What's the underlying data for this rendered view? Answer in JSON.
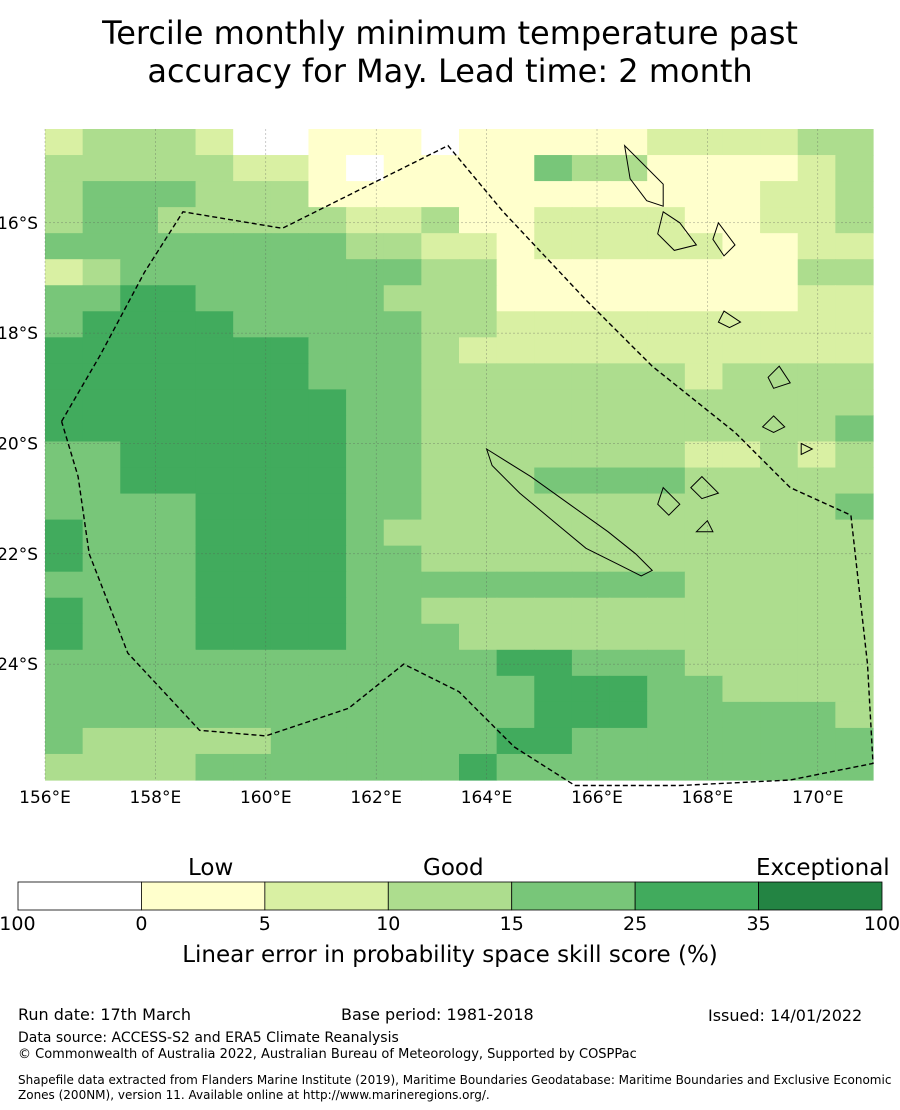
{
  "title": {
    "line1": "Tercile monthly minimum temperature past",
    "line2": "accuracy for May. Lead time: 2 month"
  },
  "map": {
    "lon_labels": [
      "156°E",
      "158°E",
      "160°E",
      "162°E",
      "164°E",
      "166°E",
      "168°E",
      "170°E"
    ],
    "lon_values": [
      156,
      158,
      160,
      162,
      164,
      166,
      168,
      170
    ],
    "lat_labels": [
      "16°S",
      "18°S",
      "20°S",
      "22°S",
      "24°S"
    ],
    "lat_values": [
      -16,
      -18,
      -20,
      -22,
      -24
    ],
    "extent": {
      "lon_min": 156,
      "lon_max": 171,
      "lat_max": -14.3,
      "lat_min": -26.1
    },
    "cell_size_deg": {
      "lon": 0.833,
      "lat": 0.556
    },
    "skill_grid_classes": [
      "2333200111011111222233",
      "3333322101111433111123",
      "3444333111111111111223",
      "3443333322311222211223",
      "4444444433221222221122",
      "2344444444331111111133",
      "4455444443331111111122",
      "4555544444332222222222",
      "5555555444322222222222",
      "5555555444333333323333",
      "5555555544333333333333",
      "5555555544333333333334",
      "4455555544333333322323",
      "4455555544333444433333",
      "4444555544333333333334",
      "5444555543333333333333",
      "5444555544333333333333",
      "4444555544444444433333",
      "5444555544333333333333",
      "5444555544433333333333",
      "4444444444445544433333",
      "4444444444444555443333",
      "4444444444444555444443",
      "4333334444445544444444",
      "3333444444454444444444"
    ],
    "zone_boundary_lonlat": [
      [
        156.3,
        -19.6
      ],
      [
        157.0,
        -18.4
      ],
      [
        157.8,
        -16.9
      ],
      [
        158.5,
        -15.8
      ],
      [
        160.3,
        -16.1
      ],
      [
        163.3,
        -14.6
      ],
      [
        164.3,
        -15.8
      ],
      [
        165.8,
        -17.4
      ],
      [
        167.0,
        -18.6
      ],
      [
        168.5,
        -19.8
      ],
      [
        169.5,
        -20.8
      ],
      [
        170.6,
        -21.3
      ],
      [
        170.9,
        -24.0
      ],
      [
        171.0,
        -25.8
      ],
      [
        169.5,
        -26.1
      ],
      [
        167.5,
        -26.2
      ],
      [
        165.6,
        -26.2
      ],
      [
        164.5,
        -25.5
      ],
      [
        163.5,
        -24.5
      ],
      [
        162.5,
        -24.0
      ],
      [
        161.5,
        -24.8
      ],
      [
        160.0,
        -25.3
      ],
      [
        158.8,
        -25.2
      ],
      [
        157.5,
        -23.8
      ],
      [
        156.8,
        -22.0
      ],
      [
        156.6,
        -20.6
      ],
      [
        156.3,
        -19.6
      ]
    ],
    "coastlines_lonlat": [
      [
        [
          164.0,
          -20.1
        ],
        [
          164.8,
          -20.6
        ],
        [
          165.5,
          -21.1
        ],
        [
          166.2,
          -21.6
        ],
        [
          166.7,
          -22.0
        ],
        [
          167.0,
          -22.3
        ],
        [
          166.8,
          -22.4
        ],
        [
          166.4,
          -22.2
        ],
        [
          165.8,
          -21.9
        ],
        [
          165.2,
          -21.4
        ],
        [
          164.6,
          -20.9
        ],
        [
          164.1,
          -20.4
        ],
        [
          164.0,
          -20.1
        ]
      ],
      [
        [
          166.5,
          -14.6
        ],
        [
          166.8,
          -14.9
        ],
        [
          167.2,
          -15.3
        ],
        [
          167.2,
          -15.7
        ],
        [
          166.9,
          -15.6
        ],
        [
          166.6,
          -15.2
        ],
        [
          166.5,
          -14.6
        ]
      ],
      [
        [
          167.2,
          -15.8
        ],
        [
          167.5,
          -16.0
        ],
        [
          167.8,
          -16.4
        ],
        [
          167.4,
          -16.5
        ],
        [
          167.1,
          -16.2
        ],
        [
          167.2,
          -15.8
        ]
      ],
      [
        [
          168.2,
          -16.0
        ],
        [
          168.5,
          -16.4
        ],
        [
          168.3,
          -16.6
        ],
        [
          168.1,
          -16.3
        ],
        [
          168.2,
          -16.0
        ]
      ],
      [
        [
          168.3,
          -17.6
        ],
        [
          168.6,
          -17.8
        ],
        [
          168.4,
          -17.9
        ],
        [
          168.2,
          -17.8
        ],
        [
          168.3,
          -17.6
        ]
      ],
      [
        [
          169.3,
          -18.6
        ],
        [
          169.5,
          -18.9
        ],
        [
          169.2,
          -19.0
        ],
        [
          169.1,
          -18.8
        ],
        [
          169.3,
          -18.6
        ]
      ],
      [
        [
          169.2,
          -19.5
        ],
        [
          169.4,
          -19.7
        ],
        [
          169.2,
          -19.8
        ],
        [
          169.0,
          -19.7
        ],
        [
          169.2,
          -19.5
        ]
      ],
      [
        [
          167.9,
          -20.6
        ],
        [
          168.2,
          -20.9
        ],
        [
          167.9,
          -21.0
        ],
        [
          167.7,
          -20.8
        ],
        [
          167.9,
          -20.6
        ]
      ],
      [
        [
          167.2,
          -20.8
        ],
        [
          167.5,
          -21.1
        ],
        [
          167.3,
          -21.3
        ],
        [
          167.1,
          -21.1
        ],
        [
          167.2,
          -20.8
        ]
      ],
      [
        [
          168.0,
          -21.4
        ],
        [
          168.1,
          -21.6
        ],
        [
          167.8,
          -21.6
        ],
        [
          168.0,
          -21.4
        ]
      ],
      [
        [
          169.7,
          -20.0
        ],
        [
          169.9,
          -20.1
        ],
        [
          169.7,
          -20.2
        ],
        [
          169.7,
          -20.0
        ]
      ]
    ]
  },
  "colorbar": {
    "categories": [
      "Low",
      "Good",
      "Exceptional"
    ],
    "ticks": [
      "-100",
      "0",
      "5",
      "10",
      "15",
      "25",
      "35",
      "100"
    ],
    "bin_colors": [
      "#ffffff",
      "#ffffcc",
      "#d9f0a3",
      "#addd8e",
      "#78c679",
      "#41ab5d",
      "#238443"
    ],
    "title": "Linear error in probability space skill score (%)"
  },
  "footer": {
    "run_date": "Run date: 17th March",
    "base_period": "Base period: 1981-2018",
    "issued": "Issued: 14/01/2022",
    "data_source": "Data source: ACCESS-S2 and ERA5 Climate Reanalysis",
    "copyright": "© Commonwealth of Australia 2022, Australian Bureau of Meteorology, Supported by COSPPac",
    "shapefile": "Shapefile data extracted from Flanders Marine Institute (2019), Maritime Boundaries Geodatabase: Maritime Boundaries and Exclusive Economic Zones (200NM), version 11. Available online at http://www.marineregions.org/."
  }
}
